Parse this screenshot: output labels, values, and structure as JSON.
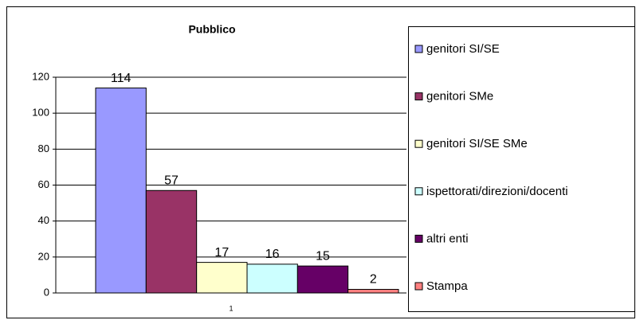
{
  "chart_data": {
    "type": "bar",
    "title": "Pubblico",
    "categories": [
      "1"
    ],
    "series": [
      {
        "name": "genitori SI/SE",
        "color": "#9999ff",
        "values": [
          114
        ]
      },
      {
        "name": "genitori SMe",
        "color": "#993366",
        "values": [
          57
        ]
      },
      {
        "name": "genitori SI/SE SMe",
        "color": "#ffffcc",
        "values": [
          17
        ]
      },
      {
        "name": "ispettorati/direzioni/docenti",
        "color": "#ccffff",
        "values": [
          16
        ]
      },
      {
        "name": "altri enti",
        "color": "#660066",
        "values": [
          15
        ]
      },
      {
        "name": "Stampa",
        "color": "#ff8080",
        "values": [
          2
        ]
      }
    ],
    "ylim": [
      0,
      120
    ],
    "yticks": [
      0,
      20,
      40,
      60,
      80,
      100,
      120
    ],
    "grid": true,
    "legend": "right"
  }
}
